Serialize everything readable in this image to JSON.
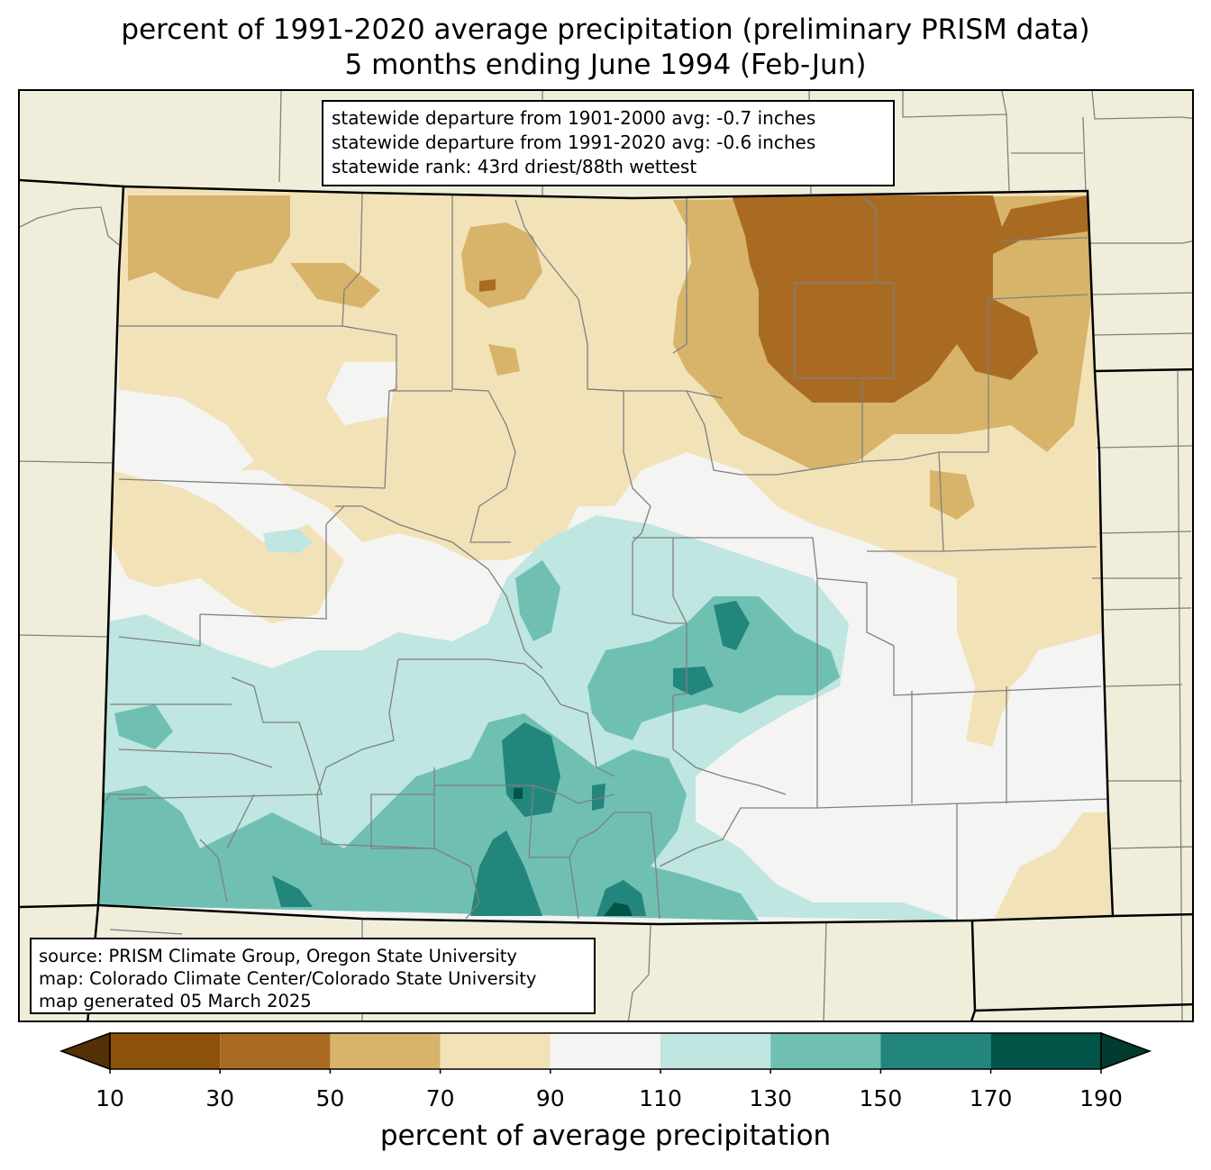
{
  "title": {
    "line1": "percent of 1991-2020 average precipitation (preliminary PRISM data)",
    "line2": "5 months ending June 1994 (Feb-Jun)"
  },
  "stats": {
    "line1": "statewide departure from 1901-2000 avg: -0.7 inches",
    "line2": "statewide departure from 1991-2020 avg: -0.6 inches",
    "line3": "statewide rank: 43rd driest/88th wettest"
  },
  "source": {
    "line1": "source: PRISM Climate Group, Oregon State University",
    "line2": "map: Colorado Climate Center/Colorado State University",
    "line3": "map generated 05 March 2025"
  },
  "colorbar": {
    "title": "percent of average precipitation",
    "ticks": [
      "10",
      "30",
      "50",
      "70",
      "90",
      "110",
      "130",
      "150",
      "170",
      "190"
    ],
    "colors": {
      "below_10": "#543005",
      "10_30": "#8c510a",
      "30_50": "#a96b22",
      "50_70": "#d8b36a",
      "70_90": "#f2e2b8",
      "90_110": "#f4f4f2",
      "110_130": "#bfe6e1",
      "130_150": "#6fc0b3",
      "150_170": "#23867c",
      "170_190": "#015448",
      "above_190": "#003c30"
    }
  },
  "colors": {
    "land_outside": "#f0eedb",
    "state_border": "#000000",
    "county_border": "#808080"
  }
}
